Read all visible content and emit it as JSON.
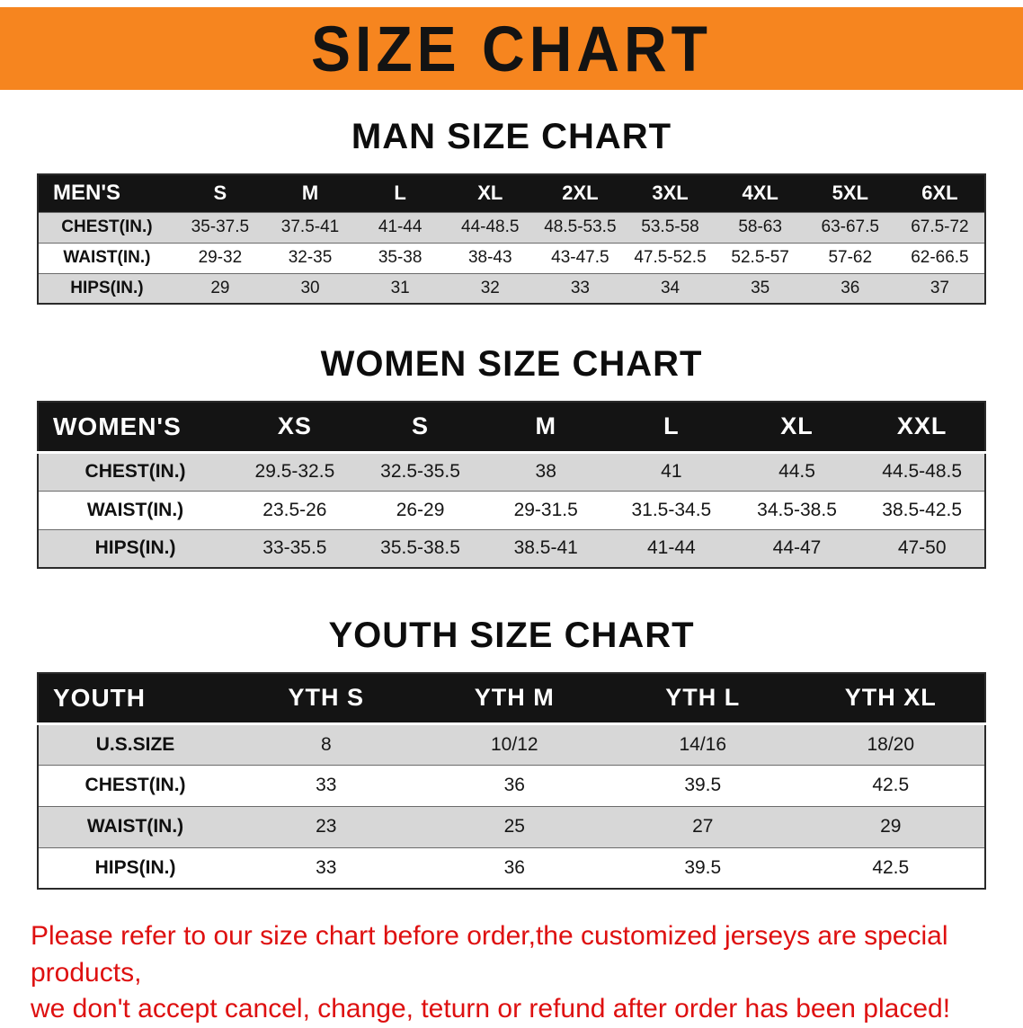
{
  "banner": {
    "title": "SIZE CHART"
  },
  "colors": {
    "banner_orange": "#F6851F",
    "table_header_black": "#141414",
    "row_gray": "#d7d7d7",
    "disclaimer_red": "#DE1010"
  },
  "men_section": {
    "heading": "MAN SIZE CHART",
    "table": {
      "header": [
        "MEN'S",
        "S",
        "M",
        "L",
        "XL",
        "2XL",
        "3XL",
        "4XL",
        "5XL",
        "6XL"
      ],
      "rows": [
        [
          "CHEST(IN.)",
          "35-37.5",
          "37.5-41",
          "41-44",
          "44-48.5",
          "48.5-53.5",
          "53.5-58",
          "58-63",
          "63-67.5",
          "67.5-72"
        ],
        [
          "WAIST(IN.)",
          "29-32",
          "32-35",
          "35-38",
          "38-43",
          "43-47.5",
          "47.5-52.5",
          "52.5-57",
          "57-62",
          "62-66.5"
        ],
        [
          "HIPS(IN.)",
          "29",
          "30",
          "31",
          "32",
          "33",
          "34",
          "35",
          "36",
          "37"
        ]
      ]
    }
  },
  "women_section": {
    "heading": "WOMEN SIZE CHART",
    "table": {
      "header": [
        "WOMEN'S",
        "XS",
        "S",
        "M",
        "L",
        "XL",
        "XXL"
      ],
      "rows": [
        [
          "CHEST(IN.)",
          "29.5-32.5",
          "32.5-35.5",
          "38",
          "41",
          "44.5",
          "44.5-48.5"
        ],
        [
          "WAIST(IN.)",
          "23.5-26",
          "26-29",
          "29-31.5",
          "31.5-34.5",
          "34.5-38.5",
          "38.5-42.5"
        ],
        [
          "HIPS(IN.)",
          "33-35.5",
          "35.5-38.5",
          "38.5-41",
          "41-44",
          "44-47",
          "47-50"
        ]
      ]
    }
  },
  "youth_section": {
    "heading": "YOUTH SIZE CHART",
    "table": {
      "header": [
        "YOUTH",
        "YTH S",
        "YTH M",
        "YTH L",
        "YTH XL"
      ],
      "rows": [
        [
          "U.S.SIZE",
          "8",
          "10/12",
          "14/16",
          "18/20"
        ],
        [
          "CHEST(IN.)",
          "33",
          "36",
          "39.5",
          "42.5"
        ],
        [
          "WAIST(IN.)",
          "23",
          "25",
          "27",
          "29"
        ],
        [
          "HIPS(IN.)",
          "33",
          "36",
          "39.5",
          "42.5"
        ]
      ]
    }
  },
  "disclaimer": {
    "line1": "Please refer to our size chart before order,the customized jerseys are special products,",
    "line2": "we don't accept cancel, change, teturn or refund after order has been placed!"
  }
}
